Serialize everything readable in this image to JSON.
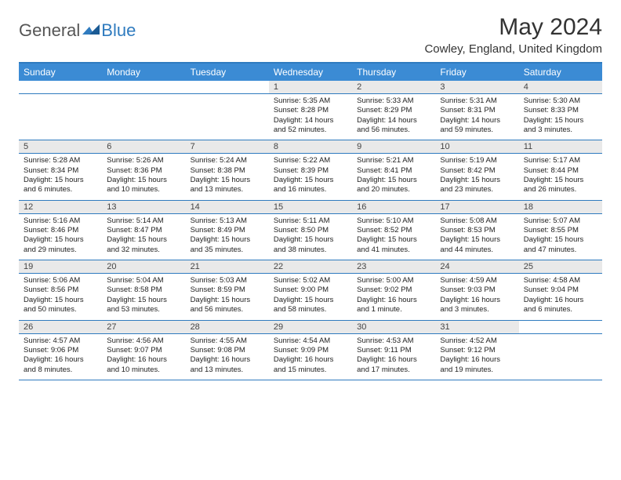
{
  "logo": {
    "part1": "General",
    "part2": "Blue"
  },
  "title": "May 2024",
  "location": "Cowley, England, United Kingdom",
  "colors": {
    "header_bg": "#3b8bd4",
    "header_text": "#ffffff",
    "border": "#2f7bbf",
    "daynum_bg": "#e9e9e9",
    "text": "#222222",
    "logo_gray": "#555555",
    "logo_blue": "#2f7bbf"
  },
  "weekdays": [
    "Sunday",
    "Monday",
    "Tuesday",
    "Wednesday",
    "Thursday",
    "Friday",
    "Saturday"
  ],
  "weeks": [
    [
      {
        "n": "",
        "sr": "",
        "ss": "",
        "dl": ""
      },
      {
        "n": "",
        "sr": "",
        "ss": "",
        "dl": ""
      },
      {
        "n": "",
        "sr": "",
        "ss": "",
        "dl": ""
      },
      {
        "n": "1",
        "sr": "Sunrise: 5:35 AM",
        "ss": "Sunset: 8:28 PM",
        "dl": "Daylight: 14 hours and 52 minutes."
      },
      {
        "n": "2",
        "sr": "Sunrise: 5:33 AM",
        "ss": "Sunset: 8:29 PM",
        "dl": "Daylight: 14 hours and 56 minutes."
      },
      {
        "n": "3",
        "sr": "Sunrise: 5:31 AM",
        "ss": "Sunset: 8:31 PM",
        "dl": "Daylight: 14 hours and 59 minutes."
      },
      {
        "n": "4",
        "sr": "Sunrise: 5:30 AM",
        "ss": "Sunset: 8:33 PM",
        "dl": "Daylight: 15 hours and 3 minutes."
      }
    ],
    [
      {
        "n": "5",
        "sr": "Sunrise: 5:28 AM",
        "ss": "Sunset: 8:34 PM",
        "dl": "Daylight: 15 hours and 6 minutes."
      },
      {
        "n": "6",
        "sr": "Sunrise: 5:26 AM",
        "ss": "Sunset: 8:36 PM",
        "dl": "Daylight: 15 hours and 10 minutes."
      },
      {
        "n": "7",
        "sr": "Sunrise: 5:24 AM",
        "ss": "Sunset: 8:38 PM",
        "dl": "Daylight: 15 hours and 13 minutes."
      },
      {
        "n": "8",
        "sr": "Sunrise: 5:22 AM",
        "ss": "Sunset: 8:39 PM",
        "dl": "Daylight: 15 hours and 16 minutes."
      },
      {
        "n": "9",
        "sr": "Sunrise: 5:21 AM",
        "ss": "Sunset: 8:41 PM",
        "dl": "Daylight: 15 hours and 20 minutes."
      },
      {
        "n": "10",
        "sr": "Sunrise: 5:19 AM",
        "ss": "Sunset: 8:42 PM",
        "dl": "Daylight: 15 hours and 23 minutes."
      },
      {
        "n": "11",
        "sr": "Sunrise: 5:17 AM",
        "ss": "Sunset: 8:44 PM",
        "dl": "Daylight: 15 hours and 26 minutes."
      }
    ],
    [
      {
        "n": "12",
        "sr": "Sunrise: 5:16 AM",
        "ss": "Sunset: 8:46 PM",
        "dl": "Daylight: 15 hours and 29 minutes."
      },
      {
        "n": "13",
        "sr": "Sunrise: 5:14 AM",
        "ss": "Sunset: 8:47 PM",
        "dl": "Daylight: 15 hours and 32 minutes."
      },
      {
        "n": "14",
        "sr": "Sunrise: 5:13 AM",
        "ss": "Sunset: 8:49 PM",
        "dl": "Daylight: 15 hours and 35 minutes."
      },
      {
        "n": "15",
        "sr": "Sunrise: 5:11 AM",
        "ss": "Sunset: 8:50 PM",
        "dl": "Daylight: 15 hours and 38 minutes."
      },
      {
        "n": "16",
        "sr": "Sunrise: 5:10 AM",
        "ss": "Sunset: 8:52 PM",
        "dl": "Daylight: 15 hours and 41 minutes."
      },
      {
        "n": "17",
        "sr": "Sunrise: 5:08 AM",
        "ss": "Sunset: 8:53 PM",
        "dl": "Daylight: 15 hours and 44 minutes."
      },
      {
        "n": "18",
        "sr": "Sunrise: 5:07 AM",
        "ss": "Sunset: 8:55 PM",
        "dl": "Daylight: 15 hours and 47 minutes."
      }
    ],
    [
      {
        "n": "19",
        "sr": "Sunrise: 5:06 AM",
        "ss": "Sunset: 8:56 PM",
        "dl": "Daylight: 15 hours and 50 minutes."
      },
      {
        "n": "20",
        "sr": "Sunrise: 5:04 AM",
        "ss": "Sunset: 8:58 PM",
        "dl": "Daylight: 15 hours and 53 minutes."
      },
      {
        "n": "21",
        "sr": "Sunrise: 5:03 AM",
        "ss": "Sunset: 8:59 PM",
        "dl": "Daylight: 15 hours and 56 minutes."
      },
      {
        "n": "22",
        "sr": "Sunrise: 5:02 AM",
        "ss": "Sunset: 9:00 PM",
        "dl": "Daylight: 15 hours and 58 minutes."
      },
      {
        "n": "23",
        "sr": "Sunrise: 5:00 AM",
        "ss": "Sunset: 9:02 PM",
        "dl": "Daylight: 16 hours and 1 minute."
      },
      {
        "n": "24",
        "sr": "Sunrise: 4:59 AM",
        "ss": "Sunset: 9:03 PM",
        "dl": "Daylight: 16 hours and 3 minutes."
      },
      {
        "n": "25",
        "sr": "Sunrise: 4:58 AM",
        "ss": "Sunset: 9:04 PM",
        "dl": "Daylight: 16 hours and 6 minutes."
      }
    ],
    [
      {
        "n": "26",
        "sr": "Sunrise: 4:57 AM",
        "ss": "Sunset: 9:06 PM",
        "dl": "Daylight: 16 hours and 8 minutes."
      },
      {
        "n": "27",
        "sr": "Sunrise: 4:56 AM",
        "ss": "Sunset: 9:07 PM",
        "dl": "Daylight: 16 hours and 10 minutes."
      },
      {
        "n": "28",
        "sr": "Sunrise: 4:55 AM",
        "ss": "Sunset: 9:08 PM",
        "dl": "Daylight: 16 hours and 13 minutes."
      },
      {
        "n": "29",
        "sr": "Sunrise: 4:54 AM",
        "ss": "Sunset: 9:09 PM",
        "dl": "Daylight: 16 hours and 15 minutes."
      },
      {
        "n": "30",
        "sr": "Sunrise: 4:53 AM",
        "ss": "Sunset: 9:11 PM",
        "dl": "Daylight: 16 hours and 17 minutes."
      },
      {
        "n": "31",
        "sr": "Sunrise: 4:52 AM",
        "ss": "Sunset: 9:12 PM",
        "dl": "Daylight: 16 hours and 19 minutes."
      },
      {
        "n": "",
        "sr": "",
        "ss": "",
        "dl": ""
      }
    ]
  ]
}
